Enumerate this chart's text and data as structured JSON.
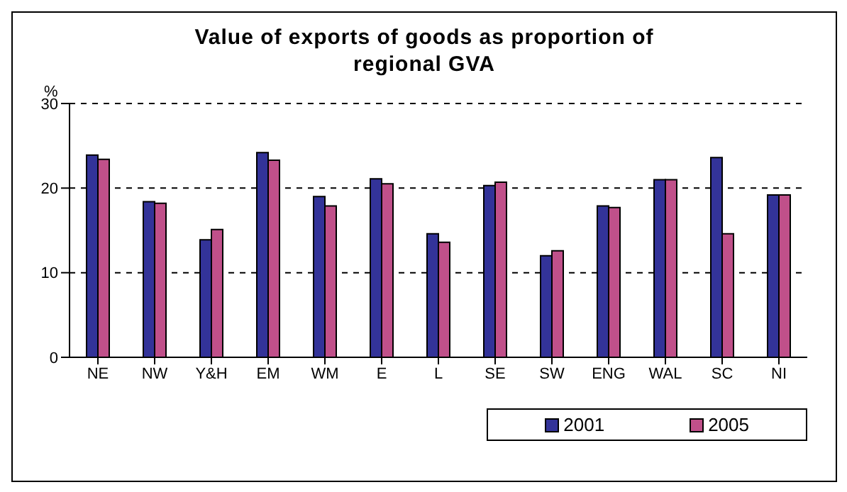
{
  "chart_data": {
    "type": "bar",
    "title": "Value of exports of goods as proportion of regional GVA",
    "ylabel": "%",
    "categories": [
      "NE",
      "NW",
      "Y&H",
      "EM",
      "WM",
      "E",
      "L",
      "SE",
      "SW",
      "ENG",
      "WAL",
      "SC",
      "NI"
    ],
    "series": [
      {
        "name": "2001",
        "color": "#333399",
        "values": [
          23.9,
          18.4,
          13.9,
          24.2,
          19.0,
          21.1,
          14.6,
          20.3,
          12.0,
          17.9,
          21.0,
          23.6,
          19.2
        ]
      },
      {
        "name": "2005",
        "color": "#c0508a",
        "values": [
          23.4,
          18.2,
          15.1,
          23.3,
          17.9,
          20.5,
          13.6,
          20.7,
          12.6,
          17.7,
          21.0,
          14.6,
          19.2
        ]
      }
    ],
    "ylim": [
      0,
      30
    ],
    "yticks": [
      0,
      10,
      20,
      30
    ],
    "grid": "y",
    "legend": "bottom right"
  }
}
